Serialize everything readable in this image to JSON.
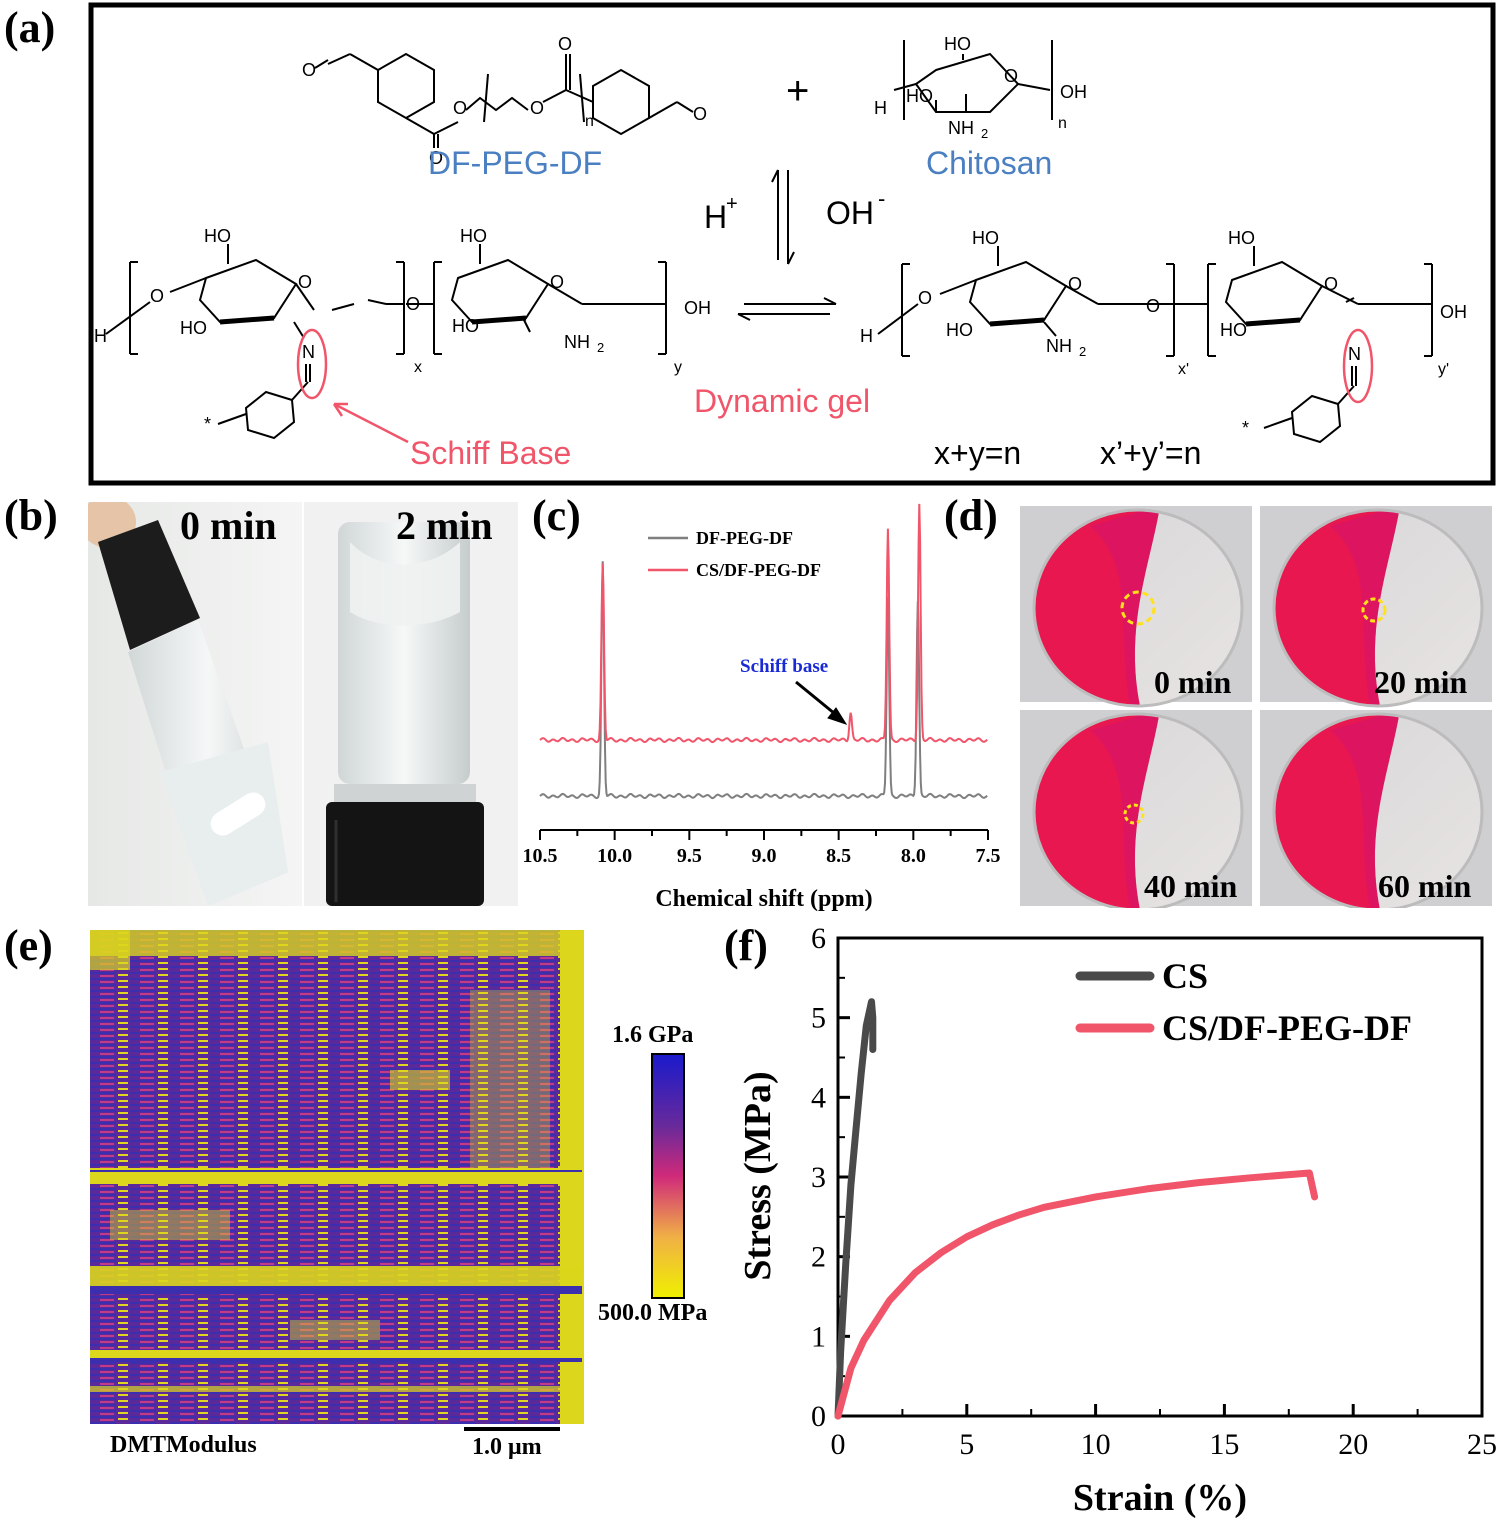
{
  "panel_labels": {
    "a": "(a)",
    "b": "(b)",
    "c": "(c)",
    "d": "(d)",
    "e": "(e)",
    "f": "(f)"
  },
  "panel_a": {
    "reactant1": "DF-PEG-DF",
    "reactant2": "Chitosan",
    "plus": "+",
    "acid": "H",
    "acid_sup": "+",
    "base": "OH",
    "base_sup": "-",
    "product": "Dynamic gel",
    "schiff": "Schiff Base",
    "eq1": "x+y=n",
    "eq2": "x’+y’=n",
    "atoms": {
      "HO": "HO",
      "OH": "OH",
      "O": "O",
      "H": "H",
      "N": "N",
      "NH2": "NH",
      "sub2": "2",
      "n": "n",
      "x": "x",
      "y": "y",
      "xp": "x'",
      "yp": "y'",
      "star": "*"
    }
  },
  "panel_b": {
    "label_left": "0 min",
    "label_right": "2 min"
  },
  "panel_c": {
    "chart_data": {
      "type": "line",
      "xlabel": "Chemical shift (ppm)",
      "xlim": [
        10.5,
        7.5
      ],
      "x_ticks": [
        "10.5",
        "10.0",
        "9.5",
        "9.0",
        "8.5",
        "8.0",
        "7.5"
      ],
      "annotation": "Schiff base",
      "series": [
        {
          "name": "DF-PEG-DF",
          "color": "#7f7f7f",
          "peaks_ppm": [
            10.08,
            8.17,
            7.97
          ]
        },
        {
          "name": "CS/DF-PEG-DF",
          "color": "#f0556a",
          "peaks_ppm": [
            10.08,
            8.42,
            8.17,
            7.96
          ]
        }
      ]
    }
  },
  "panel_d": {
    "labels": [
      "0 min",
      "20 min",
      "40 min",
      "60 min"
    ]
  },
  "panel_e": {
    "scale_max": "1.6 GPa",
    "scale_min": "500.0 MPa",
    "channel": "DMTModulus",
    "scalebar": "1.0 μm"
  },
  "panel_f": {
    "chart_data": {
      "type": "line",
      "xlabel": "Strain (%)",
      "ylabel": "Stress (MPa)",
      "xlim": [
        0,
        25
      ],
      "ylim": [
        0,
        6
      ],
      "x_ticks": [
        "0",
        "5",
        "10",
        "15",
        "20",
        "25"
      ],
      "y_ticks": [
        "0",
        "1",
        "2",
        "3",
        "4",
        "5",
        "6"
      ],
      "legend_position": "top-right",
      "series": [
        {
          "name": "CS",
          "color": "#4a4a4a",
          "x": [
            0,
            0.1,
            0.3,
            0.5,
            0.7,
            0.9,
            1.1,
            1.3,
            1.35,
            1.35
          ],
          "y": [
            0,
            0.8,
            1.9,
            2.9,
            3.6,
            4.3,
            4.9,
            5.2,
            5.0,
            4.6
          ]
        },
        {
          "name": "CS/DF-PEG-DF",
          "color": "#f0556a",
          "x": [
            0,
            0.5,
            1,
            2,
            3,
            4,
            5,
            6,
            7,
            8,
            10,
            12,
            14,
            16,
            18.3,
            18.4,
            18.5
          ],
          "y": [
            0,
            0.6,
            0.95,
            1.45,
            1.8,
            2.05,
            2.25,
            2.4,
            2.52,
            2.62,
            2.75,
            2.85,
            2.93,
            2.99,
            3.05,
            2.9,
            2.75
          ]
        }
      ]
    }
  }
}
